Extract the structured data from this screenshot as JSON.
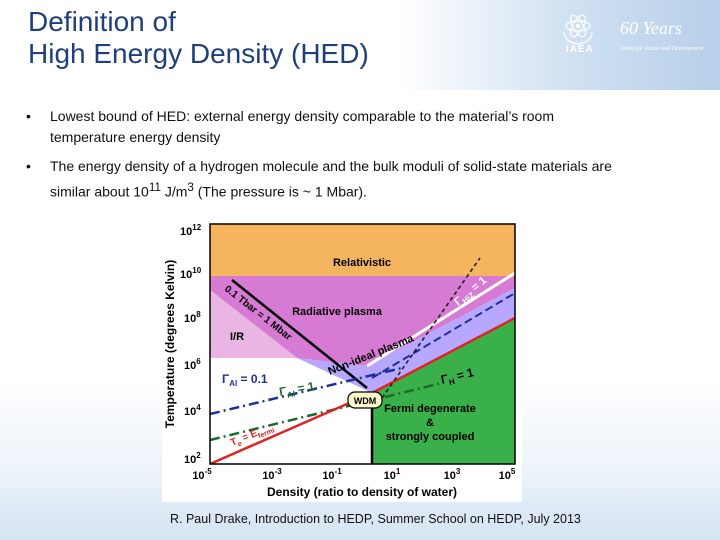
{
  "title_line1": "Definition of",
  "title_line2": "High Energy Density (HED)",
  "logo": {
    "years": "60 Years",
    "org": "IAEA",
    "tagline": "Atoms for Peace and Development",
    "icon": "iaea-atom-emblem"
  },
  "bullets": [
    {
      "line1": "Lowest bound of HED:  external energy density comparable to the material’s room",
      "line2": "temperature energy density"
    },
    {
      "line1": "The energy density of a hydrogen molecule and the bulk moduli of solid-state materials are",
      "line2_pre": "similar about 10",
      "line2_sup1": "11",
      "line2_mid": " J/m",
      "line2_sup2": "3",
      "line2_post": " (The pressure is ~ 1 Mbar)."
    }
  ],
  "diagram": {
    "y_axis_label": "Temperature (degrees Kelvin)",
    "x_axis_label": "Density (ratio to density of water)",
    "y_ticks": [
      {
        "base": "10",
        "exp": "12"
      },
      {
        "base": "10",
        "exp": "10"
      },
      {
        "base": "10",
        "exp": "8"
      },
      {
        "base": "10",
        "exp": "6"
      },
      {
        "base": "10",
        "exp": "4"
      },
      {
        "base": "10",
        "exp": "2"
      }
    ],
    "x_ticks": [
      {
        "base": "10",
        "exp": "-5"
      },
      {
        "base": "10",
        "exp": "-3"
      },
      {
        "base": "10",
        "exp": "-1"
      },
      {
        "base": "10",
        "exp": "1"
      },
      {
        "base": "10",
        "exp": "3"
      },
      {
        "base": "10",
        "exp": "5"
      }
    ],
    "regions": {
      "relativistic": "Relativistic",
      "radiative": "Radiative plasma",
      "ir": "I/R",
      "nonideal": "Non-ideal plasma",
      "wdm": "WDM",
      "fermi1": "Fermi degenerate",
      "fermi2": "&",
      "fermi3": "strongly coupled"
    },
    "line_labels": {
      "tbar": "0.1 Tbar = 1 Mbar",
      "g_hiz_pre": "Γ",
      "g_hiz_sub": "HiZ",
      "g_hiz_post": " = 1",
      "g_al01_pre": "Γ",
      "g_al01_sub": "Al",
      "g_al01_post": " = 0.1",
      "g_al1_pre": "Γ",
      "g_al1_sub": "Al",
      "g_al1_post": " = 1",
      "g_h_pre": "Γ",
      "g_h_sub": "H",
      "g_h_post": " = 1",
      "te_pre": "T",
      "te_sub1": "e",
      "te_mid": " = E",
      "te_sub2": "fermi"
    },
    "colors": {
      "relativistic": "#f5b55e",
      "radiative": "#d77ad4",
      "ir": "#e9b6e4",
      "nonideal": "#b8a7ff",
      "fermi": "#3ab04a",
      "wdm": "#fffbc8"
    }
  },
  "citation": "R. Paul Drake,  Introduction to HEDP, Summer School on HEDP,  July 2013"
}
